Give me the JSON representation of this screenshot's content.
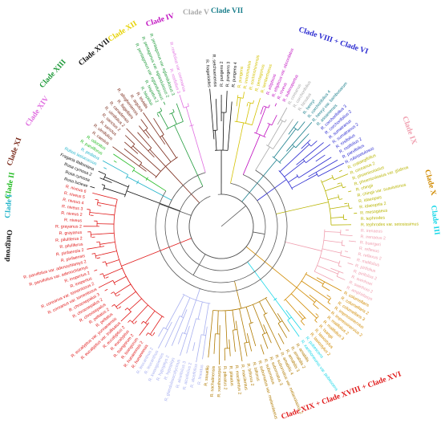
{
  "clade_labels": [
    {
      "text": "Clade V",
      "color": "#aaaaaa"
    },
    {
      "text": "Clade VII",
      "color": "#1a7f8c"
    },
    {
      "text": "Clade IV",
      "color": "#c010c0"
    },
    {
      "text": "Clade VIII + Clade VI",
      "color": "#2a2ad0"
    },
    {
      "text": "Clade XII",
      "color": "#e6d200"
    },
    {
      "text": "Clade XVII",
      "color": "#111111"
    },
    {
      "text": "Clade XIII",
      "color": "#1f9a3a"
    },
    {
      "text": "Clade XIV",
      "color": "#e06ee0"
    },
    {
      "text": "Clade XI",
      "color": "#7a2a1a"
    },
    {
      "text": "Clade II",
      "color": "#22bb22"
    },
    {
      "text": "Clade I",
      "color": "#1fb3c9"
    },
    {
      "text": "Outgroup",
      "color": "#111111"
    },
    {
      "text": "Clade IX",
      "color": "#f0a0b0"
    },
    {
      "text": "Clade X",
      "color": "#d08a00"
    },
    {
      "text": "Clade III",
      "color": "#18d7e8"
    },
    {
      "text": "Clade XIX + Clade XVIII + Clade XVI",
      "color": "#e01a1a"
    }
  ],
  "groups": [
    {
      "clade": "Clade XVII",
      "color": "#111111",
      "leaves": [
        "R. fragarioides",
        "R. setchuenensis",
        "R. pungens 2",
        "R. pungens 3",
        "R. pungens 4"
      ]
    },
    {
      "clade": "Clade XII",
      "color": "#d4c200",
      "leaves": [
        "R. pungens",
        "R. innominatus",
        "R. cochinchinensis",
        "R. pentagonus",
        "R. lambertianus"
      ]
    },
    {
      "clade": "Clade IV",
      "color": "#c010c0",
      "leaves": [
        "R. ellipticus",
        "R. ellipticus var. obcordatus",
        "R. niveus",
        "R. subinopertus"
      ]
    },
    {
      "clade": "Clade V",
      "color": "#aaaaaa",
      "leaves": [
        "R. coreanus",
        "R. corchorifolius",
        "R. hirsutus"
      ]
    },
    {
      "clade": "Clade VII",
      "color": "#1a7f8c",
      "leaves": [
        "R. henryi",
        "R. corchorifolius 4",
        "R. henryi var. bambusarum",
        "R. assamensis"
      ]
    },
    {
      "clade": "Clade VIII",
      "color": "#2a2ad0",
      "leaves": [
        "R. corchorifolius 3",
        "R. corchorifolius 2",
        "R. sumatranus",
        "R. sumatranus 2",
        "R. rosifolius",
        "R. rosifolius 2",
        "R. parvifolius",
        "R. rubrisetulosus"
      ]
    },
    {
      "clade": "Clade VI",
      "color": "#b8b400",
      "leaves": [
        "R. crataegifolius",
        "R. coreanus 2",
        "R. phoenicolasius",
        "R. phoenicolasius var. glabrus",
        "R. chingii",
        "R. chingii var. suavissimus",
        "R. idaeopsis",
        "R. idaeopsis 2",
        "R. mesogaeus",
        "R. tephrodes",
        "R. tephrodes var. setosissimus"
      ]
    },
    {
      "clade": "Clade IX",
      "color": "#f0a0b0",
      "leaves": [
        "R. irenaeus",
        "R. irenaeus 2",
        "R. buergeri",
        "R. reflexus",
        "R. reflexus 2",
        "R. malifolius",
        "R. pirifolius",
        "R. pirifolius 2",
        "R. swinhoei",
        "R. swinhoei 2",
        "R. amphidasys"
      ]
    },
    {
      "clade": "Clade X",
      "color": "#d08a00",
      "leaves": [
        "R. columellaris",
        "R. columellaris 2",
        "R. columellaris 3",
        "R. impressinervius",
        "R. impressinervius 2",
        "R. malifolius 2",
        "R. malifolius 3",
        "R. tsangii",
        "R. lasiostylus",
        "R. lasiostylus 2"
      ]
    },
    {
      "clade": "Clade III",
      "color": "#18d7e8",
      "leaves": [
        "R. pubescens",
        "R. xanthoneurus var. pubescens"
      ]
    },
    {
      "clade": "Clade XVI",
      "color": "#b07a00",
      "leaves": [
        "R. amabilis",
        "R. amabilis 2",
        "R. amabilis 3",
        "R. amabilis 4",
        "R. subornatus var. melanolasius 2",
        "R. subornatus 3",
        "R. subornatus",
        "R. subornatus var. melanolasius",
        "R. biflorus",
        "R. biflorus 2",
        "R. macilentus",
        "R. macilentus 2",
        "R. pileatus",
        "R. pileatus 2",
        "R. xanthocarpus",
        "R. sachalinensis",
        "R. saxatilis"
      ]
    },
    {
      "clade": "Clade XVIII",
      "color": "#a8b0f0",
      "leaves": [
        "R. lineatus",
        "R. alceifolius",
        "R. alceifolius 2",
        "R. alceifolius 3",
        "R. glandulosocalycinus",
        "R. hypopitys",
        "R. hypopitys 2",
        "R. kwangsiensis",
        "R. leucanthus",
        "R. leucanthus 2"
      ]
    },
    {
      "clade": "Clade XIX",
      "color": "#e01a1a",
      "leaves": [
        "R. hunanensis",
        "R. hunanensis 2",
        "R. tsangorum",
        "R. tsangorum 2",
        "R. eucalyptus",
        "R. eucalyptus 2",
        "R. eucalyptus var. trullisatus",
        "R. eucalyptus var. yunnanensis",
        "R. peltatus",
        "R. peltatus 2",
        "R. chroosepalus",
        "R. chroosepalus 2",
        "R. chroosepalus 3",
        "R. coreanus var. tomentosus",
        "R. coreanus var. tomentosus 2",
        "R. inopertus",
        "R. inopertus 2",
        "R. parvifolius var. adenochlamys",
        "R. parvifolius var. adenochlamys 2",
        "R. pinfaensis",
        "R. pinfaensis 2",
        "R. piluliferus",
        "R. piluliferus 2",
        "R. grayanus",
        "R. grayanus 2",
        "R. niveus",
        "R. niveus 2",
        "R. niveus 3",
        "R. niveus 4",
        "R. niveus 5",
        "R. niveus 6"
      ]
    },
    {
      "clade": "Outgroup",
      "color": "#111111",
      "leaves": [
        "Rosa lucieae",
        "Rosa cymosa",
        "Rosa cymosa 2",
        "Fragaria daltoniana"
      ]
    },
    {
      "clade": "Clade I",
      "color": "#1fb3c9",
      "leaves": [
        "Rubus lasiococcus",
        "R. pedatus"
      ]
    },
    {
      "clade": "Clade II",
      "color": "#22bb22",
      "leaves": [
        "R. parviflorus",
        "R. odoratus"
      ]
    },
    {
      "clade": "Clade XI",
      "color": "#7a2a1a",
      "leaves": [
        "R. caesius",
        "R. ulmifolius",
        "R. sanctus",
        "R. sanctus 2",
        "R. ulmifolius 2",
        "R. canadensis",
        "R. flagellaris",
        "R. allegheniensis",
        "R. argutus",
        "R. trivialis"
      ]
    },
    {
      "clade": "Clade XIII",
      "color": "#1f9a3a",
      "leaves": [
        "R. hispidus",
        "R. hispidus 2",
        "R. pentagonus var. eglandulosus",
        "R. pentagonus var. eglandulosus 2",
        "R. pentagonus var. eglandulosus 3"
      ]
    },
    {
      "clade": "Clade XIV",
      "color": "#e06ee0",
      "leaves": [
        "R. rosifolius 3",
        "R. rosifolius var. coronarius"
      ]
    }
  ]
}
